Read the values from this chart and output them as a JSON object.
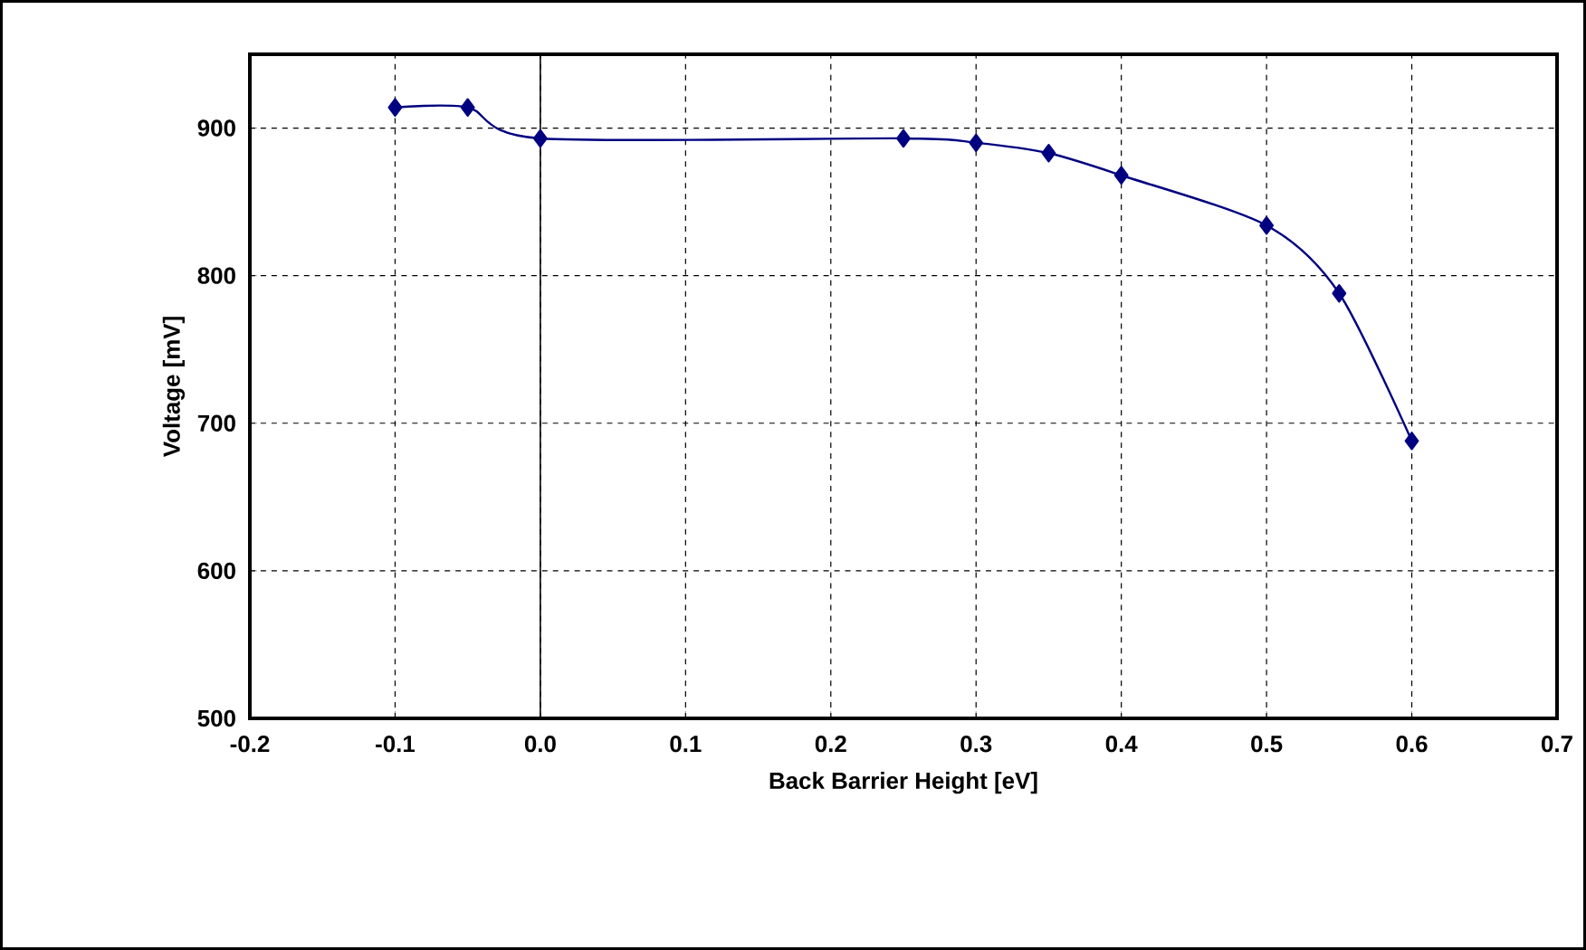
{
  "chart_data": {
    "type": "line",
    "xlabel": "Back Barrier Height [eV]",
    "ylabel": "Voltage [mV]",
    "x": [
      -0.1,
      -0.05,
      0.0,
      0.25,
      0.3,
      0.35,
      0.4,
      0.5,
      0.55,
      0.6
    ],
    "series": [
      {
        "color": "#000080",
        "values": [
          914,
          914,
          893,
          893,
          890,
          883,
          868,
          834,
          788,
          688
        ]
      }
    ],
    "xlim": [
      -0.2,
      0.7
    ],
    "xticks": [
      -0.2,
      -0.1,
      {
        "value": 0,
        "label": "0.0"
      },
      0.1,
      0.2,
      0.3,
      0.4,
      0.5,
      0.6,
      0.7
    ],
    "ylim": [
      500,
      950
    ],
    "yticks": [
      500,
      600,
      700,
      800,
      900
    ],
    "ref_lines": [
      {
        "axis": "x",
        "value": 0,
        "color": "#000000",
        "line_style": "solid"
      }
    ],
    "grid": true,
    "marker": "diamond",
    "line_style": "solid"
  }
}
